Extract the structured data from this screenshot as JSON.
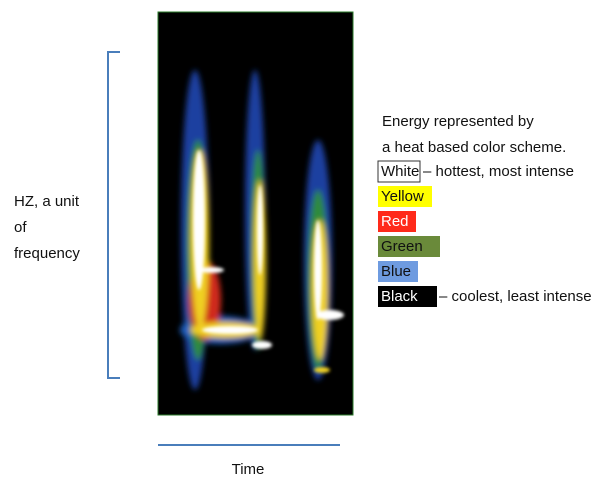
{
  "frequency_label": {
    "lines": [
      "HZ, a unit",
      "of",
      "frequency"
    ]
  },
  "time_label": "Time",
  "legend": {
    "heading": [
      "Energy represented by",
      "a heat based color scheme."
    ],
    "items": [
      {
        "label": "White",
        "description": "– hottest, most intense"
      },
      {
        "label": "Yellow"
      },
      {
        "label": "Red"
      },
      {
        "label": "Green"
      },
      {
        "label": "Blue"
      },
      {
        "label": "Black",
        "description": "– coolest, least intense"
      }
    ]
  }
}
